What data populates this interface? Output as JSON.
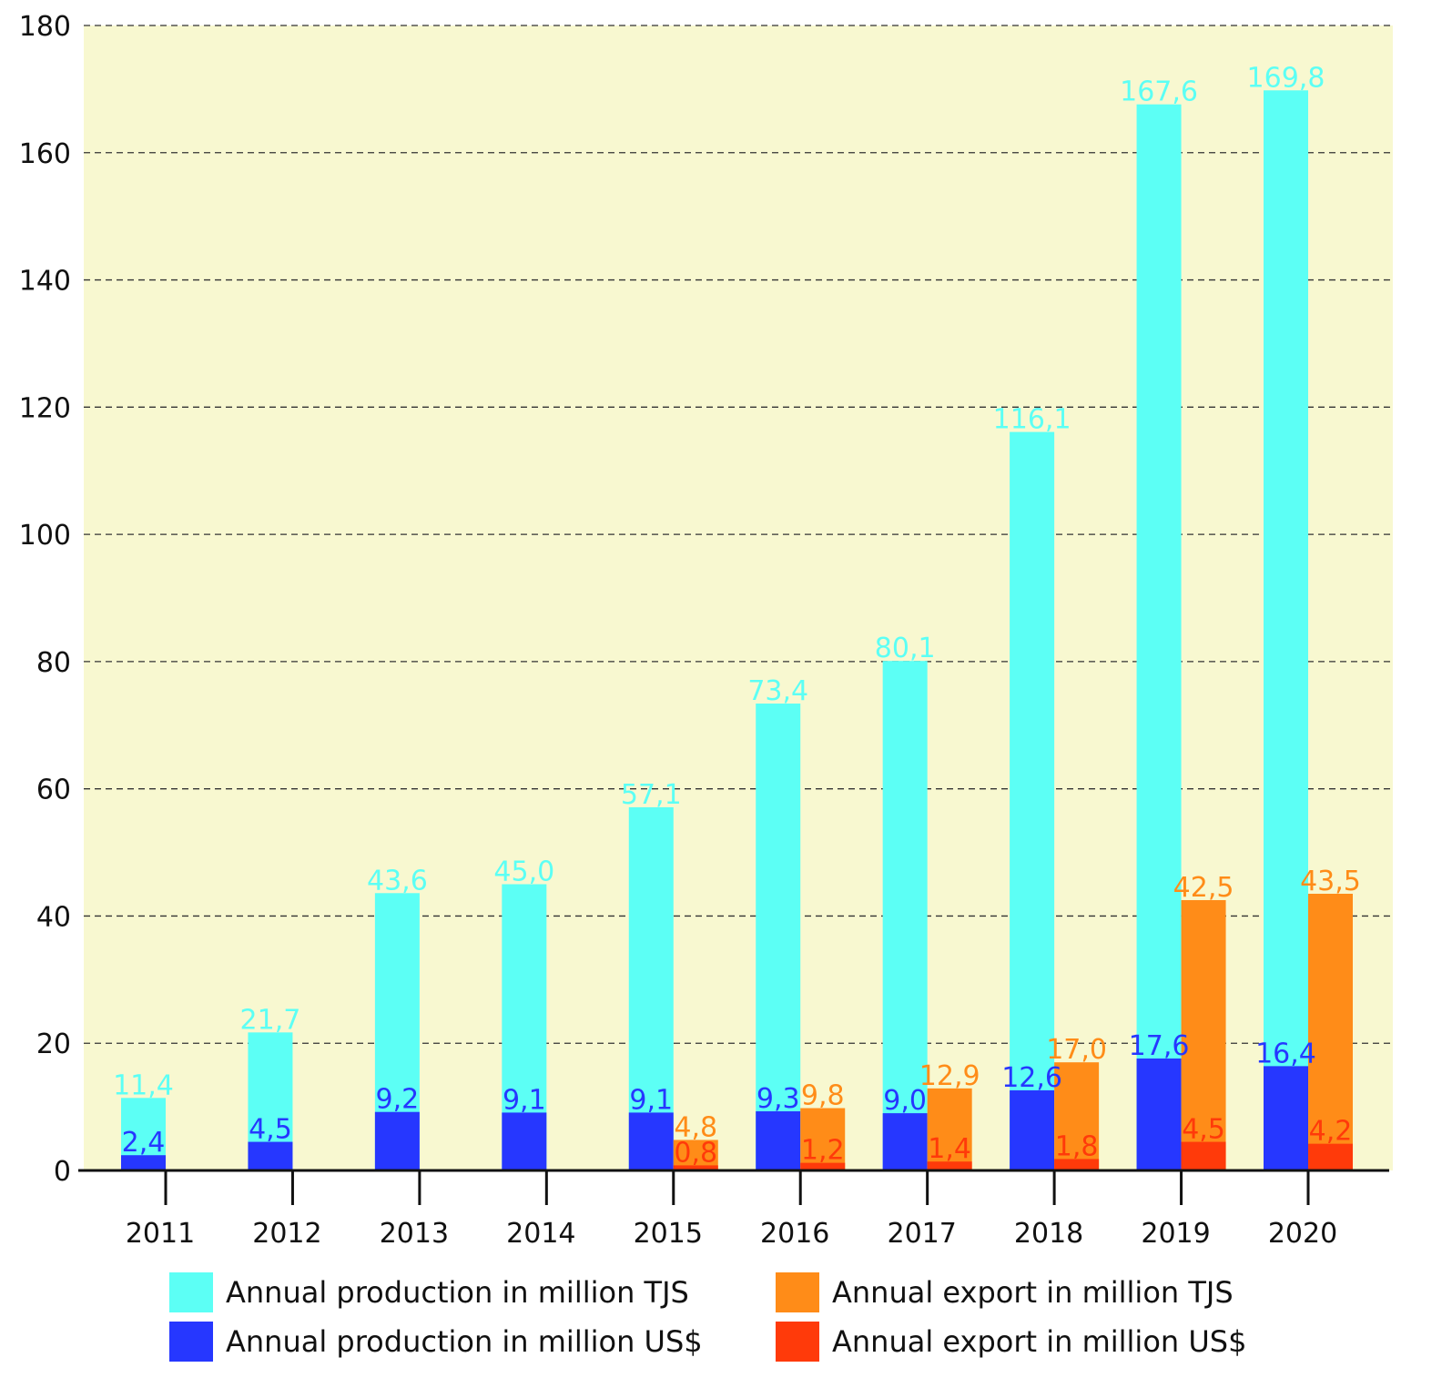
{
  "chart_data": {
    "type": "bar",
    "categories": [
      "2011",
      "2012",
      "2013",
      "2014",
      "2015",
      "2016",
      "2017",
      "2018",
      "2019",
      "2020"
    ],
    "ylim": [
      0,
      180
    ],
    "yticks": [
      0,
      20,
      40,
      60,
      80,
      100,
      120,
      140,
      160,
      180
    ],
    "grid": true,
    "legend_position": "bottom",
    "plot_background": "#f8f8d0",
    "series": [
      {
        "name": "Annual production in million TJS",
        "color": "#5cfff5",
        "label_color": "#5cfff5",
        "group": "production",
        "values": [
          11.4,
          21.7,
          43.6,
          45.0,
          57.1,
          73.4,
          80.1,
          116.1,
          167.6,
          169.8
        ],
        "labels": [
          "11,4",
          "21,7",
          "43,6",
          "45,0",
          "57,1",
          "73,4",
          "80,1",
          "116,1",
          "167,6",
          "169,8"
        ]
      },
      {
        "name": "Annual production in million US$",
        "color": "#2637ff",
        "label_color": "#2637ff",
        "group": "production",
        "values": [
          2.4,
          4.5,
          9.2,
          9.1,
          9.1,
          9.3,
          9.0,
          12.6,
          17.6,
          16.4
        ],
        "labels": [
          "2,4",
          "4,5",
          "9,2",
          "9,1",
          "9,1",
          "9,3",
          "9,0",
          "12,6",
          "17,6",
          "16,4"
        ]
      },
      {
        "name": "Annual export in million TJS",
        "color": "#ff8c18",
        "label_color": "#ff8c18",
        "group": "export",
        "values": [
          null,
          null,
          null,
          null,
          4.8,
          9.8,
          12.9,
          17.0,
          42.5,
          43.5
        ],
        "labels": [
          "",
          "",
          "",
          "",
          "4,8",
          "9,8",
          "12,9",
          "17,0",
          "42,5",
          "43,5"
        ]
      },
      {
        "name": "Annual export in million US$",
        "color": "#ff3a0a",
        "label_color": "#ff3a0a",
        "group": "export",
        "values": [
          null,
          null,
          null,
          null,
          0.8,
          1.2,
          1.4,
          1.8,
          4.5,
          4.2
        ],
        "labels": [
          "",
          "",
          "",
          "",
          "0,8",
          "1,2",
          "1,4",
          "1,8",
          "4,5",
          "4,2"
        ]
      }
    ]
  }
}
